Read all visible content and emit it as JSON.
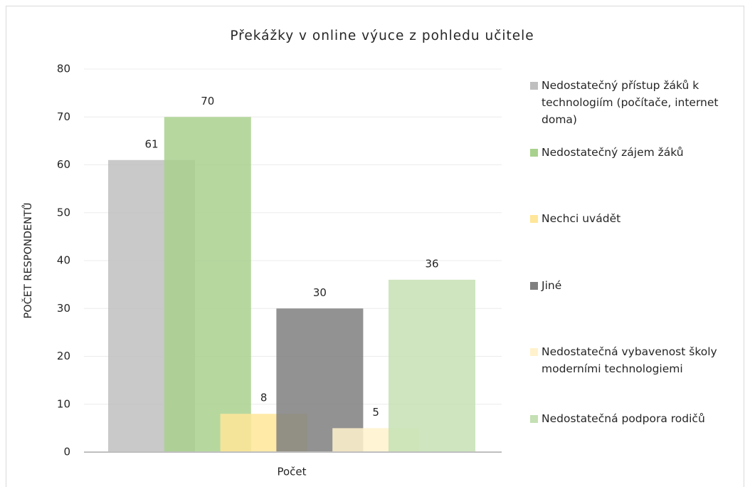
{
  "chart_data": {
    "type": "bar",
    "title": "Překážky v online výuce z pohledu učitele",
    "y_label": "POČET RESPONDENTŮ",
    "categories": [
      "Počet"
    ],
    "series": [
      {
        "name": "Nedostatečný přístup žáků k technologiím (počítače, internet doma)",
        "color": "#bfbfbf",
        "values": [
          61
        ]
      },
      {
        "name": "Nedostatečný zájem žáků",
        "color": "#a9d18e",
        "values": [
          70
        ]
      },
      {
        "name": "Nechci uvádět",
        "color": "#ffe699",
        "values": [
          8
        ]
      },
      {
        "name": "Jiné",
        "color": "#7f7f7f",
        "values": [
          30
        ]
      },
      {
        "name": "Nedostatečná vybavenost školy moderními technologiemi",
        "color": "#fff2cc",
        "values": [
          5
        ]
      },
      {
        "name": "Nedostatečná podpora rodičů",
        "color": "#c5e0b4",
        "values": [
          36
        ]
      }
    ],
    "ylim": [
      0,
      80
    ],
    "yticks": [
      0,
      10,
      20,
      30,
      40,
      50,
      60,
      70,
      80
    ],
    "grid": true,
    "legend": "right"
  }
}
